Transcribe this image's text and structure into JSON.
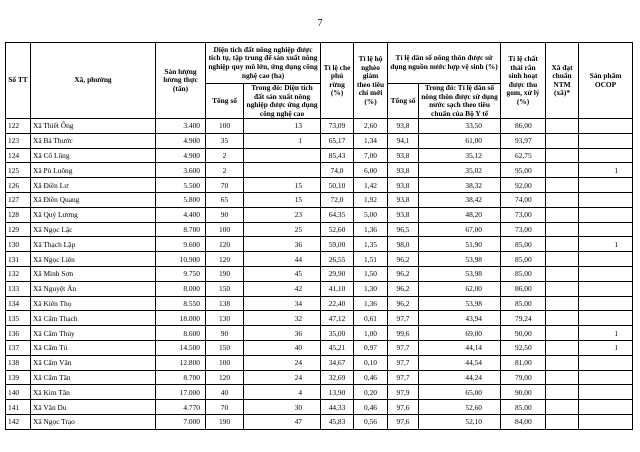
{
  "page_number": "7",
  "table": {
    "columns": [
      "Số TT",
      "Xã, phường",
      "Sản lượng lương thực (tấn)",
      "Diện tích đất nông nghiệp được tích tụ, tập trung để sản xuất nông nghiệp quy mô lớn, ứng dụng công nghệ cao (ha)",
      "Tỉ lệ che phủ rừng (%)",
      "Tỉ lệ hộ nghèo giảm theo tiêu chí mới (%)",
      "Tỉ lệ dân số nông thôn được sử dụng nguồn nước hợp vệ sinh (%)",
      "Tỉ lệ chất thải rắn sinh hoạt được thu gom, xử lý (%)",
      "Xã đạt chuẩn NTM (xã)*",
      "Sản phẩm OCOP"
    ],
    "subcolumns": [
      "Tổng số",
      "Trong đó: Diện tích đất sản xuất nông nghiệp được ứng dụng công nghệ cao",
      "Tổng số",
      "Trong đó: Tỉ lệ dân số nông thôn được sử dụng nước sạch theo tiêu chuẩn của Bộ Y tế"
    ],
    "rows": [
      [
        "122",
        "Xã Thiết Ống",
        "3.400",
        "100",
        "13",
        "73,09",
        "2,60",
        "93,8",
        "33,50",
        "86,00",
        null,
        null
      ],
      [
        "123",
        "Xã Bá Thước",
        "4.900",
        "35",
        "1",
        "65,17",
        "1,34",
        "94,1",
        "61,00",
        "93,97",
        null,
        null
      ],
      [
        "124",
        "Xã Cổ Lũng",
        "4.900",
        "2",
        null,
        "85,43",
        "7,00",
        "93,8",
        "35,12",
        "62,75",
        null,
        null
      ],
      [
        "125",
        "Xã Pù Luông",
        "3.600",
        "2",
        null,
        "74,0",
        "6,00",
        "93,8",
        "35,02",
        "95,00",
        null,
        "1"
      ],
      [
        "126",
        "Xã Điền Lư",
        "5.500",
        "70",
        "15",
        "50,10",
        "1,42",
        "93,8",
        "38,32",
        "92,00",
        null,
        null
      ],
      [
        "127",
        "Xã Điền Quang",
        "5.800",
        "65",
        "15",
        "72,0",
        "1,92",
        "93,8",
        "38,42",
        "74,00",
        null,
        null
      ],
      [
        "128",
        "Xã Quý Lương",
        "4.400",
        "90",
        "23",
        "64,35",
        "5,00",
        "93,8",
        "48,20",
        "73,00",
        null,
        null
      ],
      [
        "129",
        "Xã Ngọc Lặc",
        "8.700",
        "100",
        "25",
        "52,60",
        "1,36",
        "96,5",
        "67,00",
        "73,00",
        null,
        null
      ],
      [
        "130",
        "Xã Thạch Lập",
        "9.600",
        "120",
        "36",
        "59,00",
        "1,35",
        "98,0",
        "51,90",
        "85,00",
        null,
        "1"
      ],
      [
        "131",
        "Xã Ngọc Liên",
        "10.900",
        "120",
        "44",
        "26,55",
        "1,51",
        "96,2",
        "53,98",
        "85,00",
        null,
        null
      ],
      [
        "132",
        "Xã Minh Sơn",
        "9.750",
        "190",
        "45",
        "29,90",
        "1,50",
        "96,2",
        "53,98",
        "85,00",
        null,
        null
      ],
      [
        "133",
        "Xã Nguyệt Ấn",
        "8.000",
        "150",
        "42",
        "41,10",
        "1,30",
        "96,2",
        "62,00",
        "86,00",
        null,
        null
      ],
      [
        "134",
        "Xã Kiên Thọ",
        "8.550",
        "138",
        "34",
        "22,40",
        "1,36",
        "96,2",
        "53,98",
        "85,00",
        null,
        null
      ],
      [
        "135",
        "Xã Cẩm Thạch",
        "18.000",
        "130",
        "32",
        "47,12",
        "0,61",
        "97,7",
        "43,94",
        "79,24",
        null,
        null
      ],
      [
        "136",
        "Xã Cẩm Thủy",
        "8.600",
        "90",
        "36",
        "35,00",
        "1,00",
        "99,6",
        "69,00",
        "90,00",
        null,
        "1"
      ],
      [
        "137",
        "Xã Cẩm Tú",
        "14.500",
        "150",
        "40",
        "45,21",
        "0,97",
        "97,7",
        "44,14",
        "92,50",
        null,
        "1"
      ],
      [
        "138",
        "Xã Cẩm Vân",
        "12.800",
        "100",
        "24",
        "34,67",
        "0,10",
        "97,7",
        "44,54",
        "81,00",
        null,
        null
      ],
      [
        "139",
        "Xã Cẩm Tân",
        "8.700",
        "120",
        "24",
        "32,69",
        "0,46",
        "97,7",
        "44,24",
        "79,00",
        null,
        null
      ],
      [
        "140",
        "Xã Kim Tân",
        "17.000",
        "40",
        "4",
        "13,90",
        "0,20",
        "97,9",
        "65,00",
        "90,00",
        null,
        null
      ],
      [
        "141",
        "Xã Vân Du",
        "4.770",
        "70",
        "30",
        "44,33",
        "0,46",
        "97,6",
        "52,60",
        "85,00",
        null,
        null
      ],
      [
        "142",
        "Xã Ngọc Trạo",
        "7.000",
        "190",
        "47",
        "45,83",
        "0,56",
        "97,6",
        "52,10",
        "84,00",
        null,
        null
      ]
    ]
  }
}
